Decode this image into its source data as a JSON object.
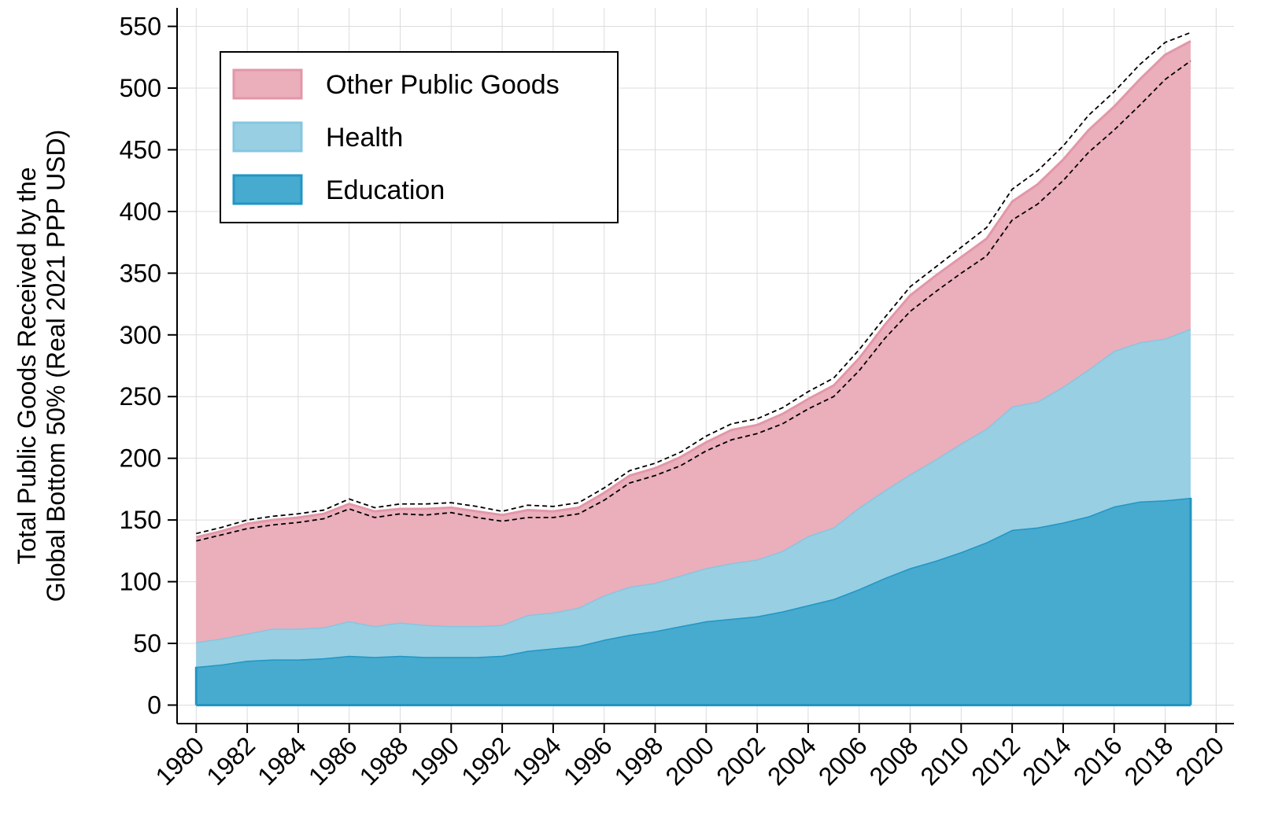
{
  "chart_data": {
    "type": "stacked_area",
    "ylabel": [
      "Total Public Goods Received by the",
      "Global Bottom 50% (Real 2021 PPP USD)"
    ],
    "x": [
      1980,
      1981,
      1982,
      1983,
      1984,
      1985,
      1986,
      1987,
      1988,
      1989,
      1990,
      1991,
      1992,
      1993,
      1994,
      1995,
      1996,
      1997,
      1998,
      1999,
      2000,
      2001,
      2002,
      2003,
      2004,
      2005,
      2006,
      2007,
      2008,
      2009,
      2010,
      2011,
      2012,
      2013,
      2014,
      2015,
      2016,
      2017,
      2018,
      2019
    ],
    "series": [
      {
        "name": "Education",
        "color": "#47aacf",
        "edge": "#2196c4",
        "values": [
          31,
          33,
          36,
          37,
          37,
          38,
          40,
          39,
          40,
          39,
          39,
          39,
          40,
          44,
          46,
          48,
          53,
          57,
          60,
          64,
          68,
          70,
          72,
          76,
          81,
          86,
          94,
          103,
          111,
          117,
          124,
          132,
          142,
          144,
          148,
          153,
          161,
          165,
          166,
          168
        ]
      },
      {
        "name": "Health",
        "color": "#98cfe3",
        "edge": "#86c6e0",
        "values": [
          20,
          21,
          22,
          25,
          25,
          25,
          28,
          25,
          27,
          26,
          25,
          25,
          25,
          29,
          29,
          31,
          36,
          39,
          39,
          41,
          43,
          45,
          46,
          49,
          56,
          58,
          66,
          71,
          76,
          82,
          88,
          92,
          100,
          102,
          110,
          119,
          126,
          129,
          131,
          137
        ]
      },
      {
        "name": "Other Public Goods",
        "color": "#ebaebb",
        "edge": "#e297a8",
        "values": [
          85,
          87,
          89,
          88,
          90,
          92,
          95,
          93,
          92,
          94,
          96,
          93,
          89,
          85,
          82,
          81,
          83,
          90,
          93,
          96,
          102,
          108,
          109,
          111,
          111,
          115,
          121,
          134,
          145,
          149,
          151,
          154,
          166,
          176,
          184,
          194,
          198,
          213,
          230,
          233
        ]
      }
    ],
    "interval": {
      "color": "#000000",
      "upper": [
        139,
        144,
        150,
        153,
        155,
        158,
        167,
        160,
        163,
        163,
        164,
        161,
        157,
        162,
        161,
        164,
        176,
        190,
        196,
        205,
        218,
        228,
        232,
        241,
        254,
        265,
        288,
        314,
        339,
        355,
        371,
        387,
        418,
        433,
        453,
        478,
        497,
        519,
        537,
        545
      ],
      "lower": [
        133,
        138,
        143,
        146,
        148,
        151,
        159,
        152,
        155,
        154,
        156,
        152,
        149,
        152,
        152,
        155,
        166,
        180,
        186,
        194,
        206,
        215,
        220,
        228,
        240,
        250,
        271,
        297,
        319,
        335,
        350,
        364,
        393,
        406,
        425,
        448,
        466,
        486,
        507,
        522
      ]
    },
    "xlim": [
      1979.25,
      2020.7
    ],
    "xticks": [
      1980,
      1982,
      1984,
      1986,
      1988,
      1990,
      1992,
      1994,
      1996,
      1998,
      2000,
      2002,
      2004,
      2006,
      2008,
      2010,
      2012,
      2014,
      2016,
      2018,
      2020
    ],
    "ylim": [
      -15,
      565
    ],
    "yticks": [
      0,
      50,
      100,
      150,
      200,
      250,
      300,
      350,
      400,
      450,
      500,
      550
    ],
    "grid": true,
    "legend": "upper left"
  }
}
